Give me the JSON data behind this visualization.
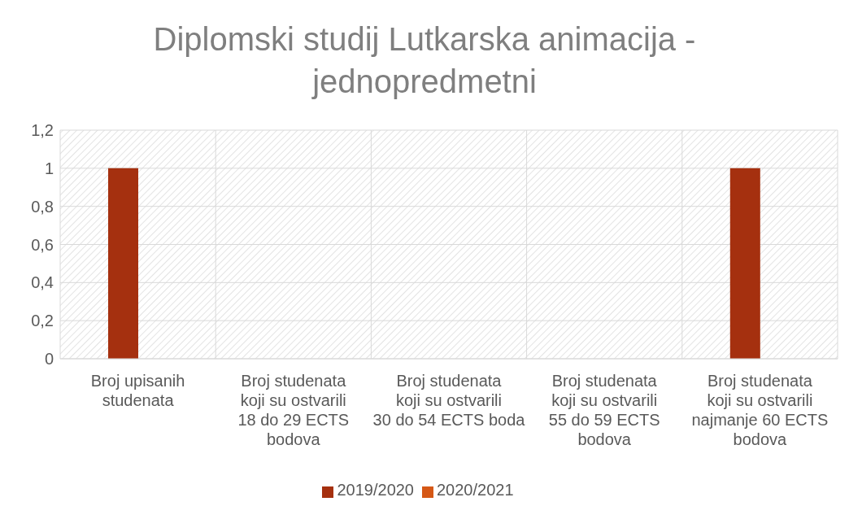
{
  "chart_data": {
    "type": "bar",
    "title": "Diplomski studij Lutkarska animacija - jednopredmetni",
    "categories": [
      "Broj upisanih studenata",
      "Broj studenata koji su ostvarili 18 do 29 ECTS bodova",
      "Broj studenata koji su ostvarili 30 do 54 ECTS boda",
      "Broj studenata koji su ostvarili 55 do 59 ECTS bodova",
      "Broj studenata koji su ostvarili najmanje 60 ECTS bodova"
    ],
    "series": [
      {
        "name": "2019/2020",
        "color": "#a5300f",
        "values": [
          1,
          0,
          0,
          0,
          1
        ]
      },
      {
        "name": "2020/2021",
        "color": "#d55816",
        "values": [
          0,
          0,
          0,
          0,
          0
        ]
      }
    ],
    "ylim": [
      0,
      1.2
    ],
    "yticks": [
      {
        "value": 0,
        "label": "0"
      },
      {
        "value": 0.2,
        "label": "0,2"
      },
      {
        "value": 0.4,
        "label": "0,4"
      },
      {
        "value": 0.6,
        "label": "0,6"
      },
      {
        "value": 0.8,
        "label": "0,8"
      },
      {
        "value": 1,
        "label": "1"
      },
      {
        "value": 1.2,
        "label": "1,2"
      }
    ],
    "grid": true,
    "legend": "bottom"
  }
}
